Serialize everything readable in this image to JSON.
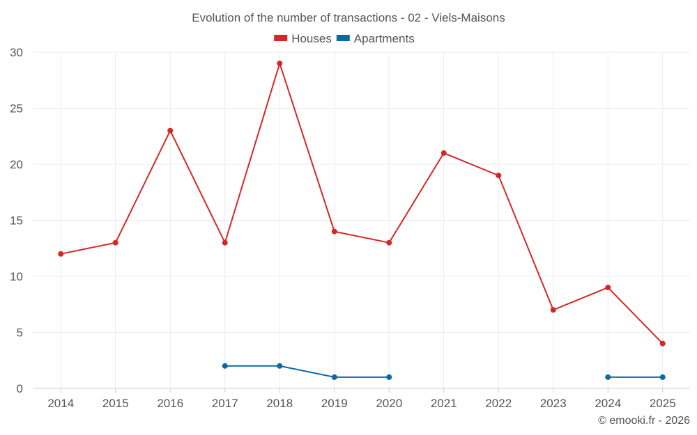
{
  "chart_data": {
    "type": "line",
    "title": "Evolution of the number of transactions - 02 - Viels-Maisons",
    "xlabel": "",
    "ylabel": "",
    "ylim": [
      0,
      30
    ],
    "yticks": [
      0,
      5,
      10,
      15,
      20,
      25,
      30
    ],
    "grid": true,
    "legend_position": "top-center",
    "categories": [
      "2014",
      "2015",
      "2016",
      "2017",
      "2018",
      "2019",
      "2020",
      "2021",
      "2022",
      "2023",
      "2024",
      "2025"
    ],
    "series": [
      {
        "name": "Houses",
        "color": "#d62728",
        "values": [
          12,
          13,
          23,
          13,
          29,
          14,
          13,
          21,
          19,
          7,
          9,
          4
        ]
      },
      {
        "name": "Apartments",
        "color": "#0b6aa2",
        "values": [
          null,
          null,
          null,
          2,
          2,
          1,
          1,
          null,
          null,
          null,
          1,
          1
        ]
      }
    ]
  },
  "credit": "© emooki.fr - 2026"
}
